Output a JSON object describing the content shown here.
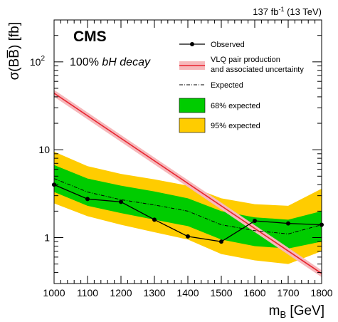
{
  "header": {
    "lumi": "137",
    "lumi_unit": "fb",
    "lumi_exp": "-1",
    "energy": "(13 TeV)"
  },
  "labels": {
    "experiment": "CMS",
    "decay_pct": "100% ",
    "decay_text": "bH decay"
  },
  "chart_data": {
    "type": "line",
    "xlabel": "m",
    "xlabel_sub": "B",
    "xlabel_unit": " [GeV]",
    "ylabel": "σ(BB̅) [fb]",
    "xlim": [
      1000,
      1800
    ],
    "ylim": [
      0.3,
      300
    ],
    "y_scale": "log",
    "x_ticks": [
      1000,
      1100,
      1200,
      1300,
      1400,
      1500,
      1600,
      1700,
      1800
    ],
    "y_tick_labels": [
      {
        "value": 1,
        "base": "1",
        "exp": ""
      },
      {
        "value": 10,
        "base": "10",
        "exp": ""
      },
      {
        "value": 100,
        "base": "10",
        "exp": "2"
      }
    ],
    "legend_position": "top-right",
    "legend": [
      {
        "label": "Observed"
      },
      {
        "label": "VLQ pair production",
        "label2": "and associated uncertainty"
      },
      {
        "label": "Expected"
      },
      {
        "label": "68% expected"
      },
      {
        "label": "95% expected"
      }
    ],
    "colors": {
      "observed": "#000000",
      "theory": "#e8232f",
      "theory_band": "#f6b8bb",
      "expected": "#000000",
      "band68": "#00cc00",
      "band95": "#ffcc00"
    },
    "x": [
      1000,
      1100,
      1200,
      1300,
      1400,
      1500,
      1600,
      1700,
      1800
    ],
    "observed": [
      4.0,
      2.75,
      2.55,
      1.6,
      1.03,
      0.9,
      1.55,
      1.45,
      1.4
    ],
    "expected": [
      4.7,
      3.3,
      2.7,
      2.35,
      2.0,
      1.4,
      1.2,
      1.1,
      1.4
    ],
    "band68": {
      "low": [
        3.3,
        2.3,
        1.9,
        1.6,
        1.35,
        0.95,
        0.8,
        0.75,
        0.9
      ],
      "high": [
        6.7,
        4.7,
        3.9,
        3.35,
        2.8,
        2.0,
        1.7,
        1.6,
        2.0
      ]
    },
    "band95": {
      "low": [
        2.45,
        1.75,
        1.4,
        1.15,
        0.95,
        0.65,
        0.55,
        0.5,
        0.7
      ],
      "high": [
        9.5,
        6.5,
        5.3,
        4.6,
        3.9,
        2.8,
        2.4,
        2.3,
        3.6
      ]
    },
    "theory": {
      "x": [
        1000,
        1800
      ],
      "central": [
        44,
        0.39
      ],
      "low": [
        40,
        0.355
      ],
      "high": [
        48,
        0.425
      ]
    }
  }
}
